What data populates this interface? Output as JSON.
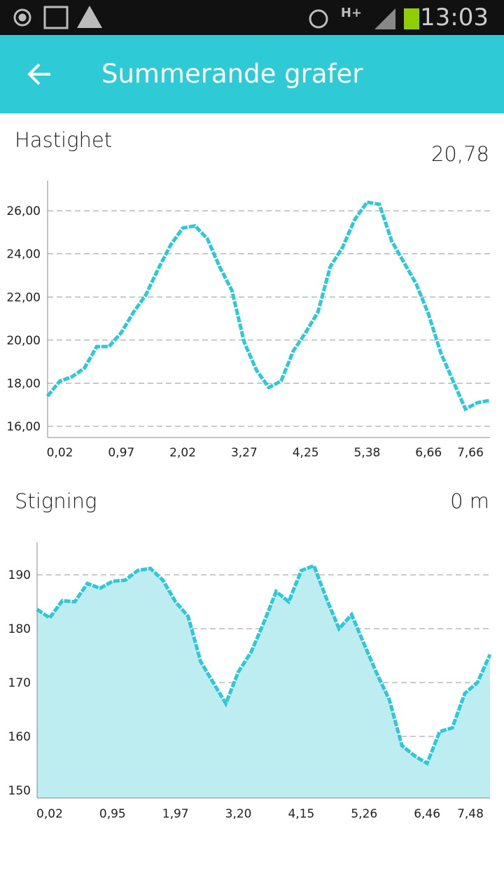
{
  "status_bar": {
    "network": "H+",
    "time": "13:03"
  },
  "app_bar": {
    "title": "Summerande grafer"
  },
  "chart_data": [
    {
      "type": "line",
      "title": "Hastighet",
      "current": "20,78",
      "color": "#2ec8d6",
      "categories": [
        null,
        "0,02",
        null,
        null,
        null,
        null,
        "0,97",
        null,
        null,
        null,
        null,
        "2,02",
        null,
        null,
        null,
        null,
        "3,27",
        null,
        null,
        null,
        null,
        "4,25",
        null,
        null,
        null,
        null,
        "5,38",
        null,
        null,
        null,
        null,
        "6,66",
        null,
        null,
        null,
        null,
        "7,66"
      ],
      "values": [
        17.4,
        18.1,
        18.3,
        18.7,
        19.7,
        19.7,
        20.35,
        21.3,
        22.1,
        23.3,
        24.4,
        25.2,
        25.3,
        24.7,
        23.4,
        22.3,
        19.9,
        18.6,
        17.8,
        18.1,
        19.5,
        20.35,
        21.3,
        23.4,
        24.3,
        25.6,
        26.4,
        26.3,
        24.6,
        23.6,
        22.6,
        21.2,
        19.4,
        18.1,
        16.8,
        17.1,
        17.2
      ],
      "ylim": [
        15.48,
        27.4
      ],
      "yticks": [
        {
          "value": 16,
          "label": "16,00"
        },
        {
          "value": 18,
          "label": "18,00"
        },
        {
          "value": 20,
          "label": "20,00"
        },
        {
          "value": 22,
          "label": "22,00"
        },
        {
          "value": 24,
          "label": "24,00"
        },
        {
          "value": 26,
          "label": "26,00"
        }
      ],
      "grid": true
    },
    {
      "type": "area",
      "title": "Stigning",
      "current": "0 m",
      "color": "#2ec8d6",
      "fill": "#bdedf1",
      "categories": [
        null,
        "0,02",
        null,
        null,
        null,
        null,
        "0,95",
        null,
        null,
        null,
        null,
        "1,97",
        null,
        null,
        null,
        null,
        "3,20",
        null,
        null,
        null,
        null,
        "4,15",
        null,
        null,
        null,
        null,
        "5,26",
        null,
        null,
        null,
        null,
        "6,46",
        null,
        null,
        null,
        null,
        "7,48"
      ],
      "values": [
        183.6,
        182,
        185.2,
        185,
        188.4,
        187.5,
        188.8,
        189,
        190.8,
        191.2,
        189,
        185,
        182.3,
        173.9,
        170,
        166.1,
        172,
        175.6,
        181,
        186.9,
        185,
        190.8,
        191.7,
        185.6,
        180,
        182.6,
        177.1,
        171.7,
        166.8,
        158.3,
        156.4,
        155,
        160.9,
        161.6,
        168,
        170,
        175.2
      ],
      "ylim": [
        148.57,
        196
      ],
      "yticks": [
        150,
        160,
        170,
        180,
        190
      ],
      "grid": true
    }
  ]
}
